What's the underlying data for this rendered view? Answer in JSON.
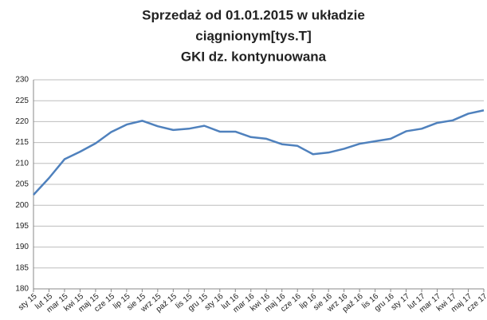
{
  "chart_data": {
    "type": "line",
    "title": [
      "Sprzedaż od 01.01.2015 w układzie",
      "ciągnionym[tys.T]",
      "GKI dz. kontynuowana"
    ],
    "categories": [
      "sty 15",
      "lut 15",
      "mar 15",
      "kwi 15",
      "maj 15",
      "cze 15",
      "lip 15",
      "sie 15",
      "wrz 15",
      "paź 15",
      "lis 15",
      "gru 15",
      "sty 16",
      "lut 16",
      "mar 16",
      "kwi 16",
      "maj 16",
      "cze 16",
      "lip 16",
      "sie 16",
      "wrz 16",
      "paź 16",
      "lis 16",
      "gru 16",
      "sty 17",
      "lut 17",
      "mar 17",
      "kwi 17",
      "maj 17",
      "cze 17"
    ],
    "values": [
      202.5,
      206.5,
      211,
      212.8,
      214.8,
      217.5,
      219.3,
      220.2,
      218.9,
      218,
      218.3,
      219,
      217.6,
      217.6,
      216.3,
      215.9,
      214.6,
      214.2,
      212.2,
      212.6,
      213.5,
      214.7,
      215.3,
      215.9,
      217.7,
      218.3,
      219.7,
      220.3,
      221.9,
      222.7
    ],
    "color": "#4f81bd",
    "ylim": [
      180,
      230
    ],
    "yticks": [
      180,
      185,
      190,
      195,
      200,
      205,
      210,
      215,
      220,
      225,
      230
    ],
    "grid": true
  }
}
